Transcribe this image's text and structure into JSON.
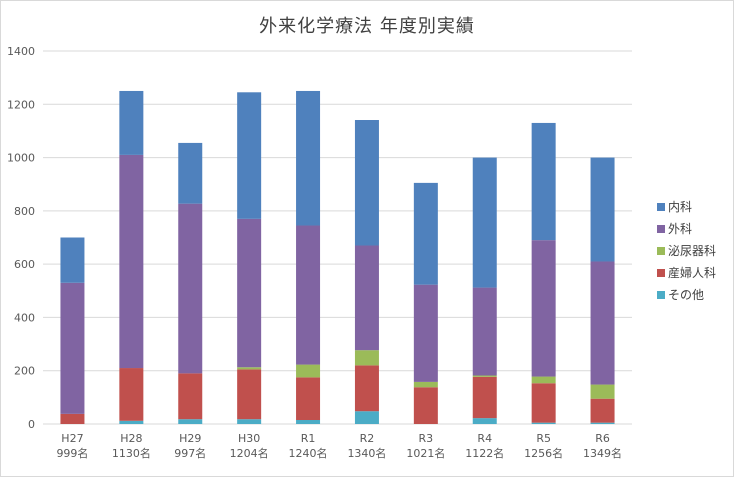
{
  "chart_data": {
    "type": "bar",
    "stacked": true,
    "title": "外来化学療法 年度別実績",
    "categories": [
      "H27",
      "H28",
      "H29",
      "H30",
      "R1",
      "R2",
      "R3",
      "R4",
      "R5",
      "R6"
    ],
    "category_sublabels": [
      "999名",
      "1130名",
      "997名",
      "1204名",
      "1240名",
      "1340名",
      "1021名",
      "1122名",
      "1256名",
      "1349名"
    ],
    "ylim": [
      0,
      1400
    ],
    "yticks": [
      "0",
      "200",
      "400",
      "600",
      "800",
      "1000",
      "1200",
      "1400"
    ],
    "grid": true,
    "legend_position": "right",
    "series": [
      {
        "name": "その他",
        "color": "#4BACC6",
        "values": [
          0,
          12,
          18,
          18,
          15,
          48,
          0,
          22,
          5,
          5
        ]
      },
      {
        "name": "産婦人科",
        "color": "#C0504D",
        "values": [
          38,
          198,
          172,
          187,
          160,
          172,
          138,
          155,
          148,
          90
        ]
      },
      {
        "name": "泌尿器科",
        "color": "#9BBB59",
        "values": [
          0,
          0,
          0,
          8,
          48,
          57,
          20,
          5,
          25,
          53
        ]
      },
      {
        "name": "外科",
        "color": "#8064A2",
        "values": [
          492,
          800,
          637,
          557,
          522,
          393,
          365,
          330,
          512,
          462
        ]
      },
      {
        "name": "内科",
        "color": "#4F81BD",
        "values": [
          170,
          240,
          228,
          475,
          505,
          471,
          382,
          488,
          440,
          390
        ]
      }
    ],
    "legend_order": [
      "内科",
      "外科",
      "泌尿器科",
      "産婦人科",
      "その他"
    ]
  }
}
